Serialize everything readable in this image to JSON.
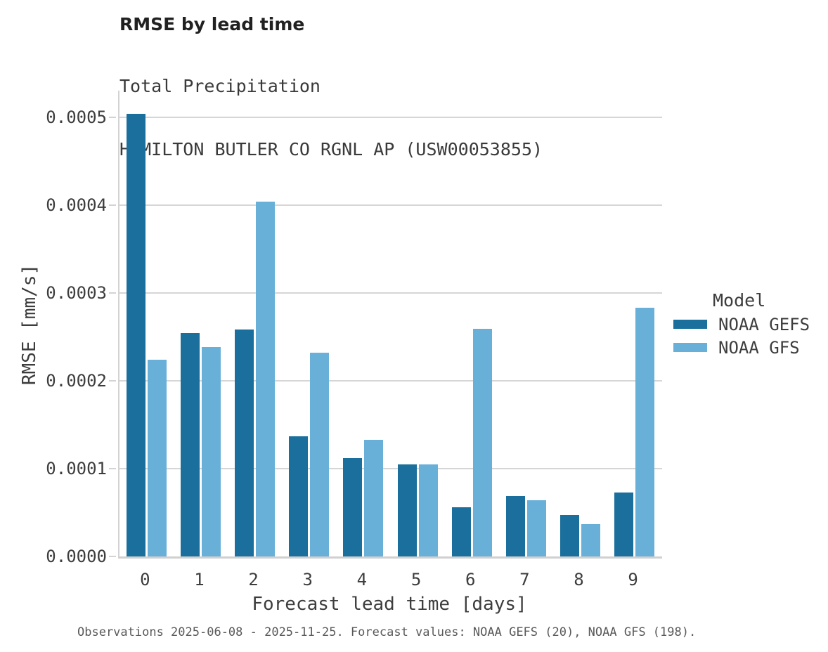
{
  "header": {
    "title": "RMSE by lead time",
    "subtitle": "Total Precipitation",
    "station": "HAMILTON BUTLER CO RGNL AP (USW00053855)"
  },
  "legend": {
    "title": "Model",
    "entries": [
      {
        "label": "NOAA GEFS",
        "color": "#1a6f9d"
      },
      {
        "label": "NOAA GFS",
        "color": "#69b0d9"
      }
    ]
  },
  "footer": {
    "caption": "Observations 2025-06-08 - 2025-11-25. Forecast values: NOAA GEFS (20), NOAA GFS (198)."
  },
  "colors": {
    "series_dark_blue": "#1a6f9d",
    "series_light_blue": "#69b0d9",
    "gridline": "#d6d6d6",
    "axis_line": "#d3d3d3",
    "title_text": "#212121",
    "tick_text": "#3d3d3d",
    "caption_text": "#595959",
    "background": "#ffffff"
  },
  "chart_data": {
    "type": "bar",
    "title": "RMSE by lead time",
    "subtitle": "Total Precipitation",
    "station": "HAMILTON BUTLER CO RGNL AP (USW00053855)",
    "categories": [
      "0",
      "1",
      "2",
      "3",
      "4",
      "5",
      "6",
      "7",
      "8",
      "9"
    ],
    "series": [
      {
        "name": "NOAA GEFS",
        "color": "#1a6f9d",
        "values": [
          0.000504,
          0.000254,
          0.000258,
          0.000137,
          0.000112,
          0.000105,
          5.6e-05,
          6.9e-05,
          4.7e-05,
          7.3e-05
        ]
      },
      {
        "name": "NOAA GFS",
        "color": "#69b0d9",
        "values": [
          0.000224,
          0.000238,
          0.000404,
          0.000232,
          0.000133,
          0.000105,
          0.000259,
          6.4e-05,
          3.7e-05,
          0.000283
        ]
      }
    ],
    "xlabel": "Forecast lead time [days]",
    "ylabel": "RMSE [mm/s]",
    "ylim": [
      0,
      0.00053
    ],
    "yticks": [
      0,
      0.0001,
      0.0002,
      0.0003,
      0.0004,
      0.0005
    ],
    "ytick_labels": [
      "0.0000",
      "0.0001",
      "0.0002",
      "0.0003",
      "0.0004",
      "0.0005"
    ],
    "grid": true,
    "legend_title": "Model",
    "legend_position": "right"
  }
}
